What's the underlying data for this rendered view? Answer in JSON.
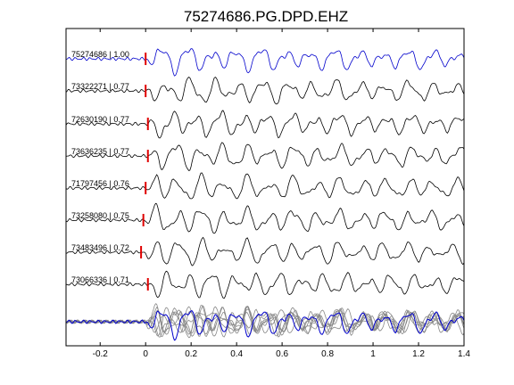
{
  "chart_data": {
    "type": "line",
    "title": "75274686.PG.DPD.EHZ",
    "xlabel": "",
    "ylabel": "",
    "xlim": [
      -0.35,
      1.4
    ],
    "xticks": [
      -0.2,
      0,
      0.2,
      0.4,
      0.6,
      0.8,
      1,
      1.2,
      1.4
    ],
    "xtick_labels": [
      "-0.2",
      "0",
      "0.2",
      "0.4",
      "0.6",
      "0.8",
      "1",
      "1.2",
      "1.4"
    ],
    "grid": false,
    "pick_time": 0,
    "colors": {
      "master_trace": "#0000cc",
      "correlated_trace": "#000000",
      "stack_overlay": "#888888",
      "pick_marker": "#e00000",
      "axes": "#000000"
    },
    "traces": [
      {
        "label": "75274686 | 1.00",
        "event_id": "75274686",
        "cc": 1.0,
        "role": "master",
        "seed": 1,
        "pick": 0
      },
      {
        "label": "73322271 | 0.77",
        "event_id": "73322271",
        "cc": 0.77,
        "role": "correlated",
        "seed": 2,
        "pick": 0
      },
      {
        "label": "72630190 | 0.77",
        "event_id": "72630190",
        "cc": 0.77,
        "role": "correlated",
        "seed": 3,
        "pick": 0.01
      },
      {
        "label": "73636235 | 0.77",
        "event_id": "73636235",
        "cc": 0.77,
        "role": "correlated",
        "seed": 4,
        "pick": 0.01
      },
      {
        "label": "71797456 | 0.76",
        "event_id": "71797456",
        "cc": 0.76,
        "role": "correlated",
        "seed": 5,
        "pick": 0
      },
      {
        "label": "73258080 | 0.75",
        "event_id": "73258080",
        "cc": 0.75,
        "role": "correlated",
        "seed": 6,
        "pick": -0.01
      },
      {
        "label": "73483496 | 0.72",
        "event_id": "73483496",
        "cc": 0.72,
        "role": "correlated",
        "seed": 7,
        "pick": -0.02
      },
      {
        "label": "73066336 | 0.71",
        "event_id": "73066336",
        "cc": 0.71,
        "role": "correlated",
        "seed": 8,
        "pick": 0.01
      }
    ],
    "stack": {
      "role": "overlay-of-all-traces"
    }
  }
}
